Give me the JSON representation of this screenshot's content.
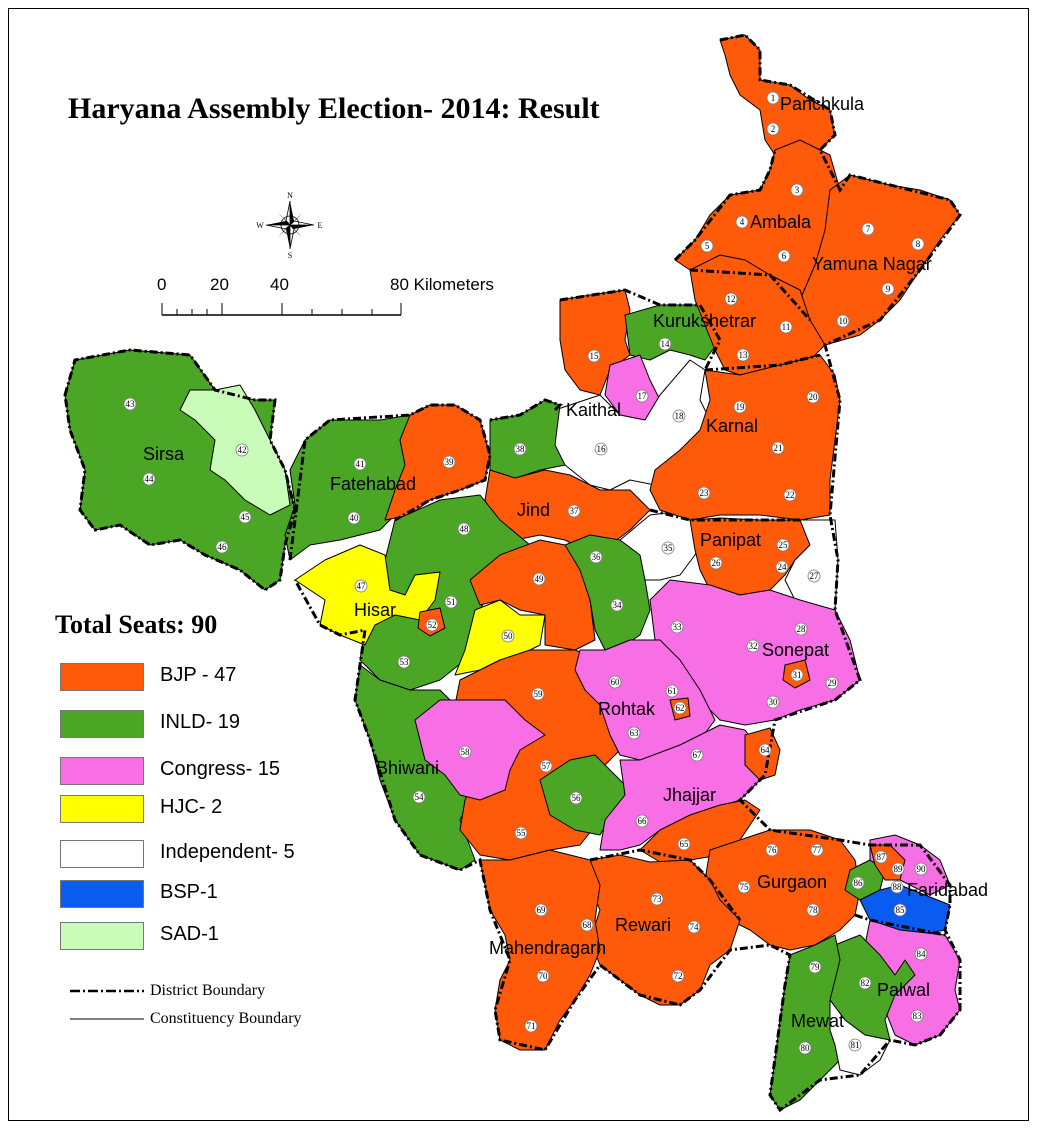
{
  "map": {
    "title": "Haryana Assembly Election- 2014: Result",
    "total_seats": "Total Seats: 90",
    "legend": [
      {
        "label": "BJP - 47",
        "color": "#ff5a0a"
      },
      {
        "label": "INLD- 19",
        "color": "#4ca626"
      },
      {
        "label": "Congress- 15",
        "color": "#f86ee4"
      },
      {
        "label": "HJC- 2",
        "color": "#ffff00"
      },
      {
        "label": "Independent- 5",
        "color": "#ffffff"
      },
      {
        "label": "BSP-1",
        "color": "#0a5cf0"
      },
      {
        "label": "SAD-1",
        "color": "#c8fcb8"
      }
    ],
    "boundaries": {
      "district": "District Boundary",
      "constituency": "Constituency Boundary"
    },
    "scale": {
      "ticks": [
        "0",
        "20",
        "40",
        "80 Kilometers"
      ]
    },
    "compass": {
      "n": "N",
      "s": "S",
      "e": "E",
      "w": "W"
    },
    "districts": [
      "Panchkula",
      "Ambala",
      "Yamuna Nagar",
      "Kurukshetrar",
      "Kaithal",
      "Karnal",
      "Sirsa",
      "Fatehabad",
      "Jind",
      "Panipat",
      "Hisar",
      "Sonepat",
      "Rohtak",
      "Bhiwani",
      "Jhajjar",
      "Gurgaon",
      "Faridabad",
      "Rewari",
      "Mahendragarh",
      "Palwal",
      "Mewat"
    ],
    "constituencies": [
      "1",
      "2",
      "3",
      "4",
      "5",
      "6",
      "7",
      "8",
      "9",
      "10",
      "11",
      "12",
      "13",
      "14",
      "15",
      "16",
      "17",
      "18",
      "19",
      "20",
      "21",
      "22",
      "23",
      "24",
      "25",
      "26",
      "27",
      "28",
      "29",
      "30",
      "31",
      "32",
      "33",
      "34",
      "35",
      "36",
      "37",
      "38",
      "39",
      "40",
      "41",
      "42",
      "43",
      "44",
      "45",
      "46",
      "47",
      "48",
      "49",
      "50",
      "51",
      "52",
      "53",
      "54",
      "55",
      "56",
      "57",
      "58",
      "59",
      "60",
      "61",
      "62",
      "63",
      "64",
      "65",
      "66",
      "67",
      "68",
      "69",
      "70",
      "71",
      "72",
      "73",
      "74",
      "75",
      "76",
      "77",
      "78",
      "79",
      "80",
      "81",
      "82",
      "83",
      "84",
      "85",
      "86",
      "87",
      "88",
      "89",
      "90"
    ]
  }
}
